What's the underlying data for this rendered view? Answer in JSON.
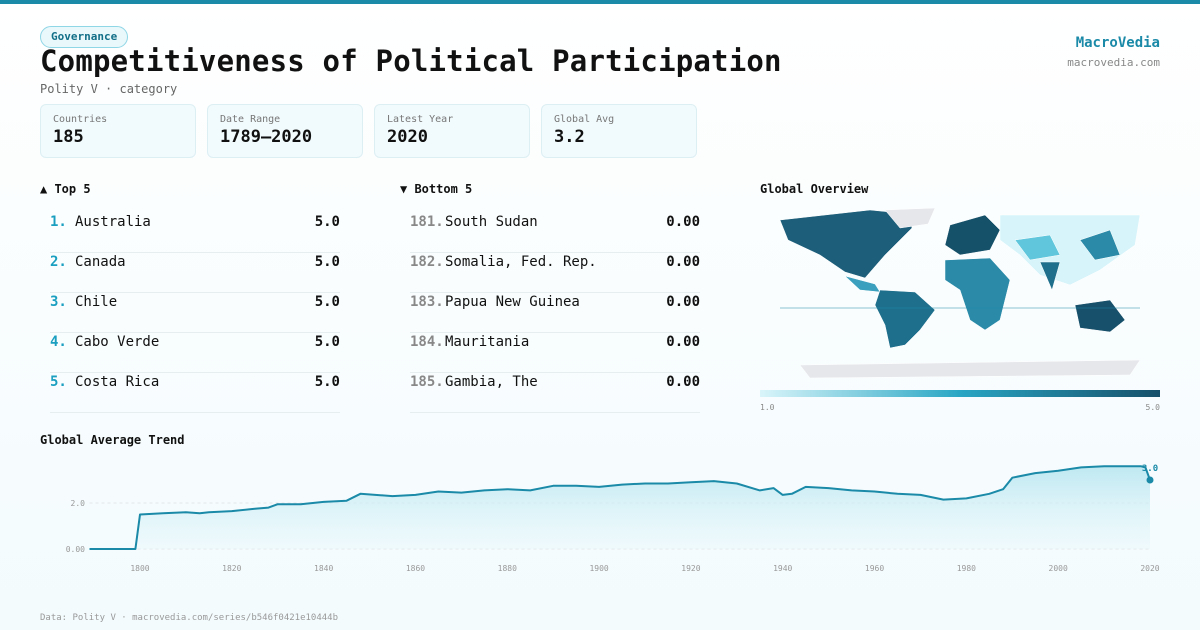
{
  "header": {
    "badge": "Governance",
    "title": "Competitiveness of Political Participation",
    "subtitle": "Polity V · category",
    "brand": "MacroVedia",
    "site": "macrovedia.com"
  },
  "stats": [
    {
      "label": "Countries",
      "value": "185"
    },
    {
      "label": "Date Range",
      "value": "1789–2020"
    },
    {
      "label": "Latest Year",
      "value": "2020"
    },
    {
      "label": "Global Avg",
      "value": "3.2"
    }
  ],
  "top": {
    "title": "▲ Top 5",
    "items": [
      {
        "rank": "1.",
        "name": "Australia",
        "value": "5.0"
      },
      {
        "rank": "2.",
        "name": "Canada",
        "value": "5.0"
      },
      {
        "rank": "3.",
        "name": "Chile",
        "value": "5.0"
      },
      {
        "rank": "4.",
        "name": "Cabo Verde",
        "value": "5.0"
      },
      {
        "rank": "5.",
        "name": "Costa Rica",
        "value": "5.0"
      }
    ]
  },
  "bottom": {
    "title": "▼ Bottom 5",
    "items": [
      {
        "rank": "181.",
        "name": "South Sudan",
        "value": "0.00"
      },
      {
        "rank": "182.",
        "name": "Somalia, Fed. Rep.",
        "value": "0.00"
      },
      {
        "rank": "183.",
        "name": "Papua New Guinea",
        "value": "0.00"
      },
      {
        "rank": "184.",
        "name": "Mauritania",
        "value": "0.00"
      },
      {
        "rank": "185.",
        "name": "Gambia, The",
        "value": "0.00"
      }
    ]
  },
  "map": {
    "title": "Global Overview",
    "colorbar_min": "1.0",
    "colorbar_max": "5.0"
  },
  "chart_data": {
    "type": "area",
    "title": "Global Average Trend",
    "color": "#1a8aa8",
    "x": [
      1789,
      1799,
      1800,
      1805,
      1810,
      1813,
      1815,
      1820,
      1825,
      1828,
      1830,
      1835,
      1840,
      1845,
      1848,
      1855,
      1860,
      1865,
      1870,
      1875,
      1880,
      1885,
      1890,
      1895,
      1900,
      1905,
      1910,
      1915,
      1920,
      1925,
      1930,
      1935,
      1938,
      1940,
      1942,
      1945,
      1950,
      1955,
      1960,
      1965,
      1970,
      1975,
      1980,
      1985,
      1988,
      1990,
      1995,
      2000,
      2005,
      2010,
      2015,
      2018,
      2019,
      2020
    ],
    "values": [
      0,
      0,
      1.5,
      1.55,
      1.6,
      1.55,
      1.6,
      1.65,
      1.75,
      1.8,
      1.95,
      1.95,
      2.05,
      2.1,
      2.4,
      2.3,
      2.35,
      2.5,
      2.45,
      2.55,
      2.6,
      2.55,
      2.75,
      2.75,
      2.7,
      2.8,
      2.85,
      2.85,
      2.9,
      2.95,
      2.85,
      2.55,
      2.65,
      2.35,
      2.4,
      2.7,
      2.65,
      2.55,
      2.5,
      2.4,
      2.35,
      2.15,
      2.2,
      2.4,
      2.6,
      3.1,
      3.3,
      3.4,
      3.55,
      3.6,
      3.6,
      3.6,
      3.55,
      3.0
    ],
    "value_labels": [
      null,
      null,
      null,
      null,
      null,
      null,
      null,
      null,
      null,
      null,
      null,
      null,
      null,
      null,
      null,
      null,
      null,
      null,
      null,
      null,
      null,
      null,
      null,
      null,
      null,
      null,
      null,
      null,
      null,
      null,
      null,
      null,
      null,
      null,
      null,
      null,
      null,
      null,
      null,
      null,
      null,
      null,
      null,
      null,
      null,
      null,
      null,
      null,
      null,
      null,
      null,
      null,
      null,
      "3.0"
    ],
    "xlim": [
      1789,
      2020
    ],
    "xticks": [
      1800,
      1820,
      1840,
      1860,
      1880,
      1900,
      1920,
      1940,
      1960,
      1980,
      2000,
      2020
    ],
    "ylim": [
      0,
      4
    ],
    "yticks": [
      {
        "value": 0,
        "label": "0.00"
      },
      {
        "value": 2,
        "label": "2.0"
      }
    ],
    "grid": true
  },
  "footer": "Data: Polity V · macrovedia.com/series/b546f0421e10444b"
}
